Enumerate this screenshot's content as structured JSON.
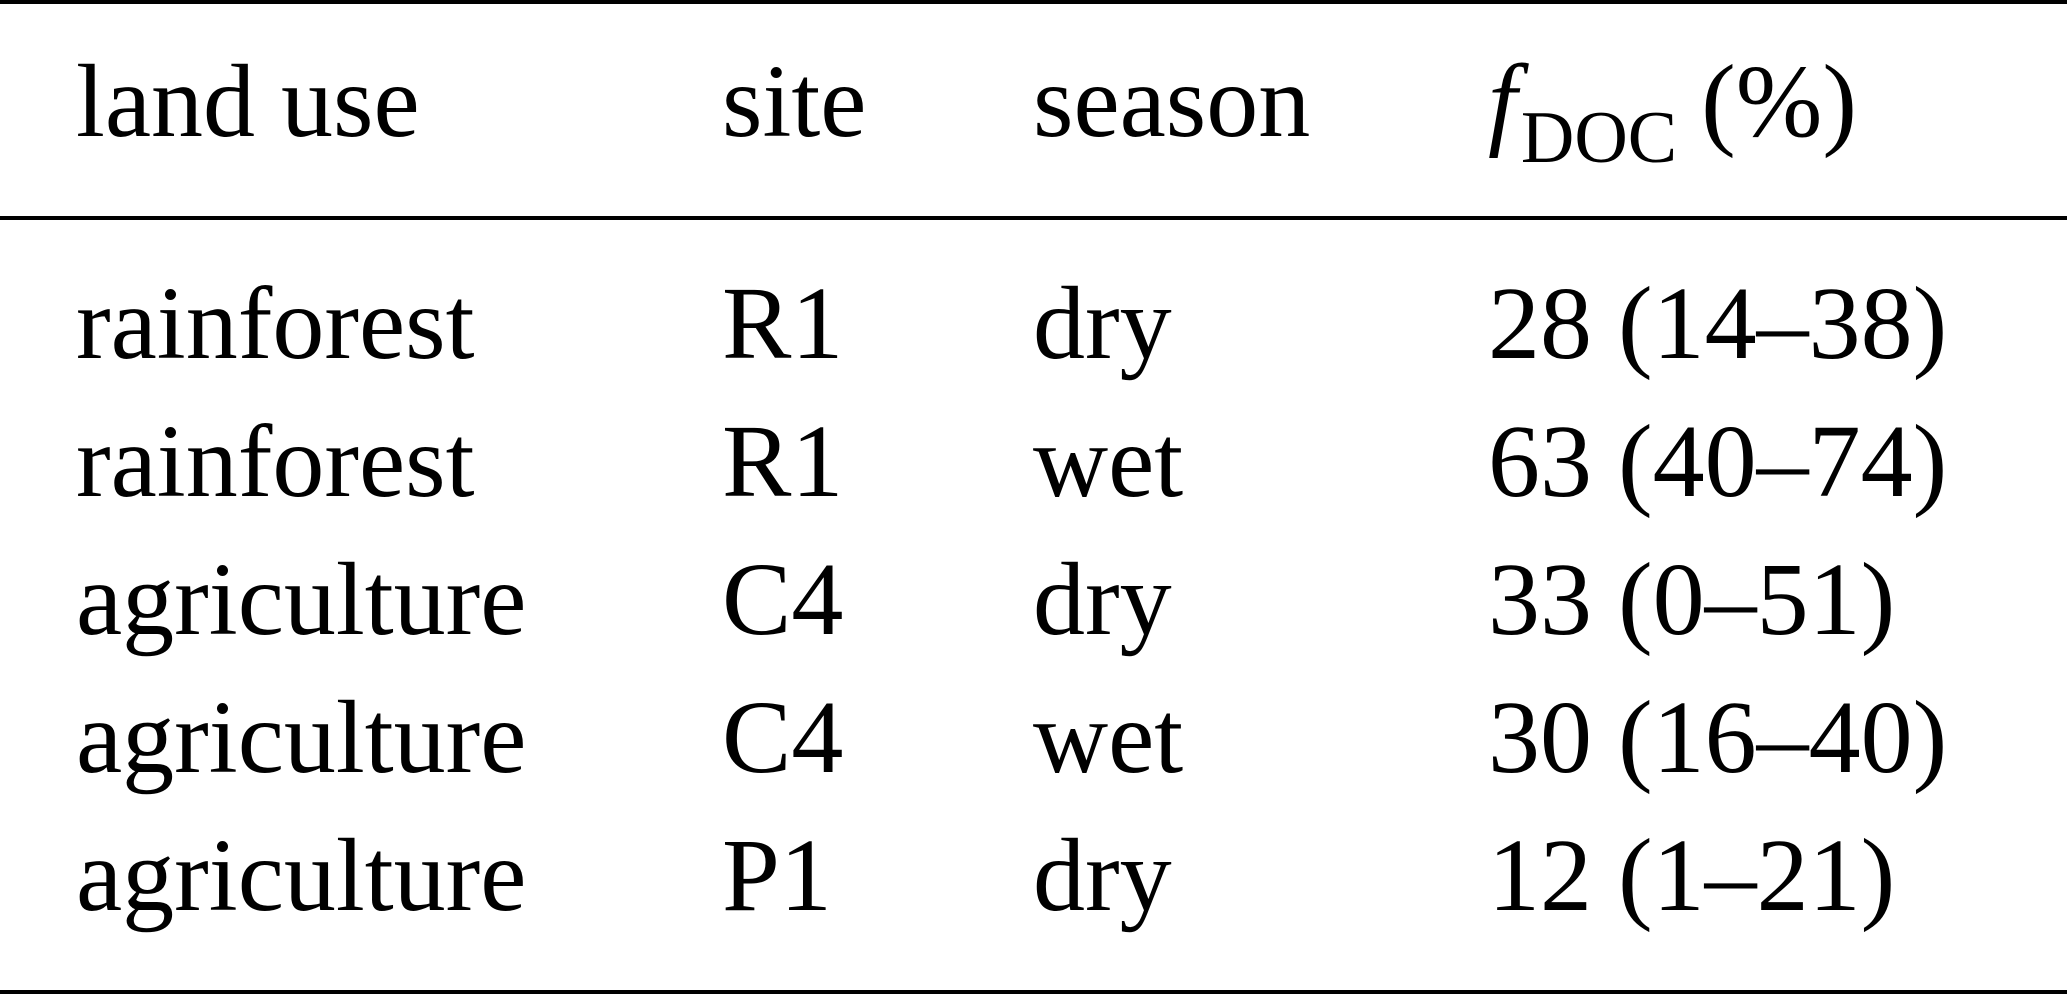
{
  "table": {
    "headers": {
      "land_use": "land use",
      "site": "site",
      "season": "season",
      "f_symbol": "f",
      "f_subscript": "DOC",
      "f_unit": "(%)"
    },
    "rows": [
      {
        "land_use": "rainforest",
        "site": "R1",
        "season": "dry",
        "f_doc": "28 (14–38)"
      },
      {
        "land_use": "rainforest",
        "site": "R1",
        "season": "wet",
        "f_doc": "63 (40–74)"
      },
      {
        "land_use": "agriculture",
        "site": "C4",
        "season": "dry",
        "f_doc": "33 (0–51)"
      },
      {
        "land_use": "agriculture",
        "site": "C4",
        "season": "wet",
        "f_doc": "30 (16–40)"
      },
      {
        "land_use": "agriculture",
        "site": "P1",
        "season": "dry",
        "f_doc": "12 (1–21)"
      }
    ]
  }
}
